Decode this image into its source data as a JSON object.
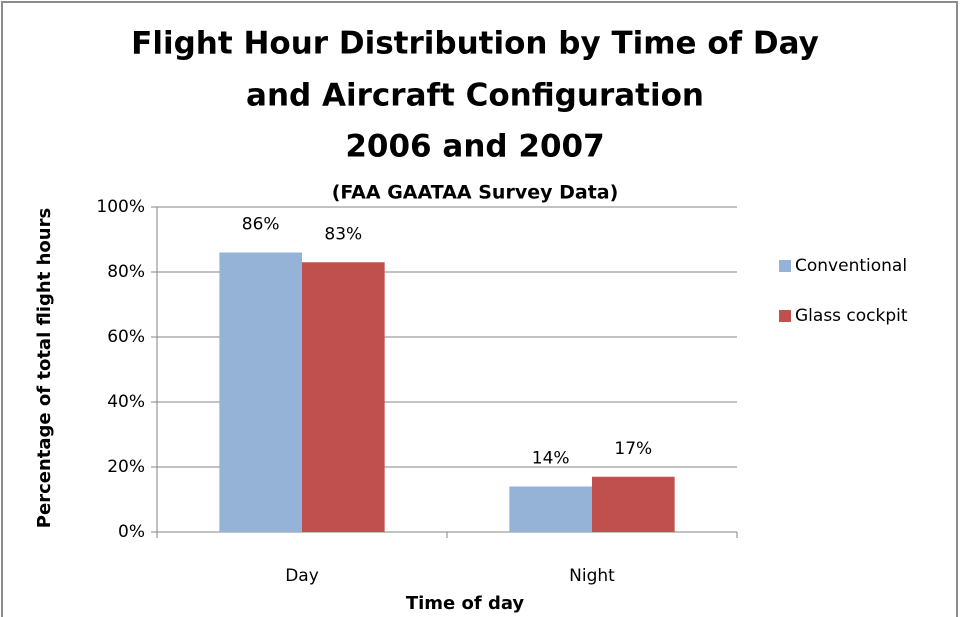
{
  "chart_data": {
    "type": "bar",
    "title": [
      "Flight Hour Distribution by Time of Day",
      "and Aircraft Configuration",
      "2006 and 2007"
    ],
    "subtitle": "(FAA GAATAA Survey Data)",
    "x_label": "Time of day",
    "y_label": "Percentage of total flight hours",
    "categories": [
      "Day",
      "Night"
    ],
    "series": [
      {
        "name": "Conventional",
        "color": "#95b3d7",
        "values": [
          86,
          14
        ],
        "value_labels": [
          "86%",
          "14%"
        ]
      },
      {
        "name": "Glass cockpit",
        "color": "#c0504d",
        "values": [
          83,
          17
        ],
        "value_labels": [
          "83%",
          "17%"
        ]
      }
    ],
    "ylim": [
      0,
      100
    ],
    "yticks": [
      {
        "value": 0,
        "label": "0%"
      },
      {
        "value": 20,
        "label": "20%"
      },
      {
        "value": 40,
        "label": "40%"
      },
      {
        "value": 60,
        "label": "60%"
      },
      {
        "value": 80,
        "label": "80%"
      },
      {
        "value": 100,
        "label": "100%"
      }
    ],
    "grid": true,
    "legend": "right"
  }
}
